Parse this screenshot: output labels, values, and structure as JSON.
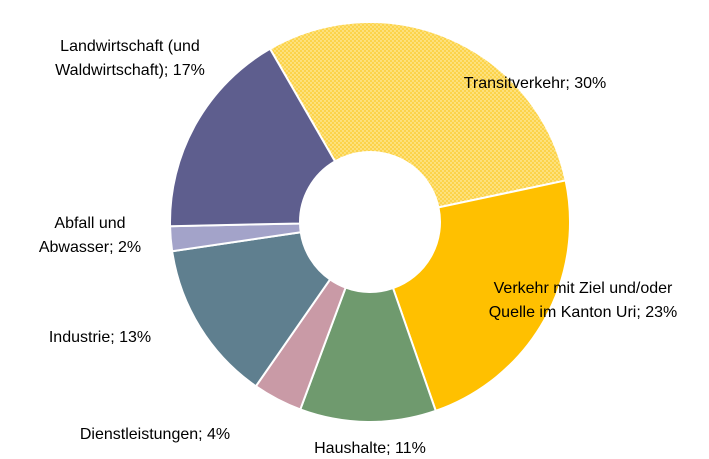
{
  "chart_data": {
    "type": "donut",
    "values": [
      30,
      23,
      11,
      4,
      13,
      2,
      17
    ],
    "value_labels": [
      [
        "Transitverkehr; 30%"
      ],
      [
        "Verkehr mit Ziel und/oder",
        "Quelle im Kanton Uri; 23%"
      ],
      [
        "Haushalte; 11%"
      ],
      [
        "Dienstleistungen; 4%"
      ],
      [
        "Industrie; 13%"
      ],
      [
        "Abfall und",
        "Abwasser; 2%"
      ],
      [
        "Landwirtschaft (und",
        "Waldwirtschaft); 17%"
      ]
    ],
    "colors": [
      "#fcd34a",
      "#ffc000",
      "#6f9a6e",
      "#c99aa6",
      "#5f7f8f",
      "#a3a3c9",
      "#5e5e8e"
    ],
    "patterned": [
      true,
      false,
      false,
      false,
      false,
      false,
      false
    ]
  }
}
